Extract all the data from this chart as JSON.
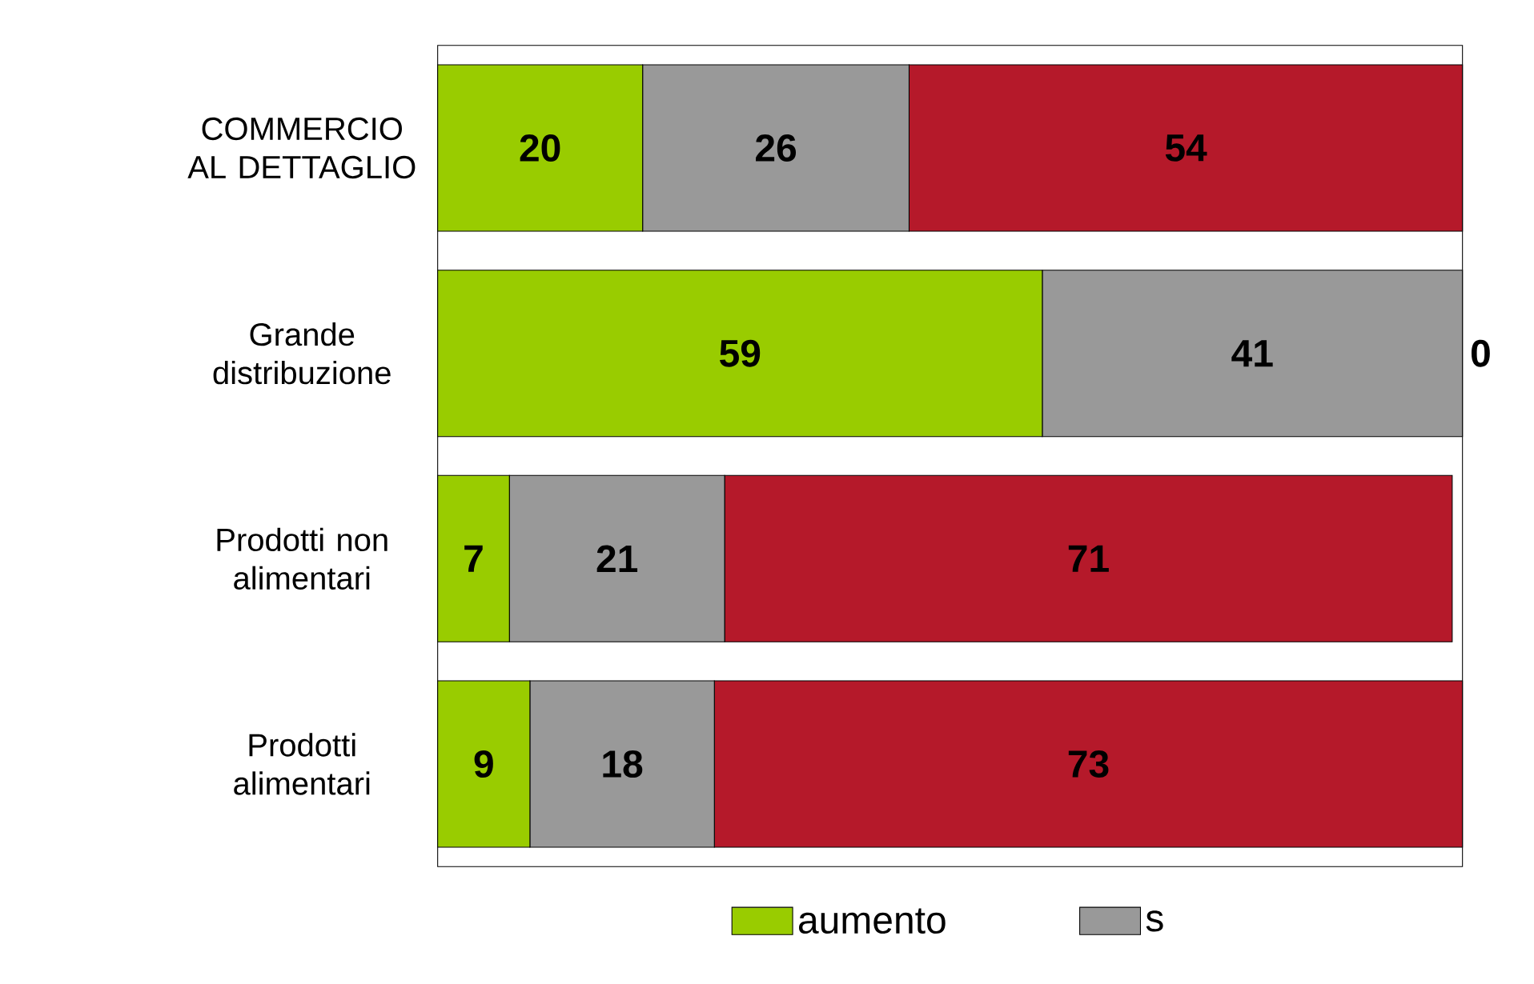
{
  "chart_data": {
    "type": "bar",
    "orientation": "horizontal",
    "stacked": true,
    "data_labels": true,
    "legend": "bottom",
    "grid": false,
    "categories": [
      "COMMERCIO AL DETTAGLIO",
      "Grande distribuzione",
      "Prodotti non alimentari",
      "Prodotti alimentari"
    ],
    "series": [
      {
        "name": "aumento",
        "color": "#99cc00",
        "values": [
          20,
          59,
          7,
          9
        ]
      },
      {
        "name": "s",
        "color": "#999999",
        "values": [
          26,
          41,
          21,
          18
        ]
      },
      {
        "color": "#b5192a",
        "values": [
          54,
          0,
          71,
          73
        ]
      }
    ]
  }
}
